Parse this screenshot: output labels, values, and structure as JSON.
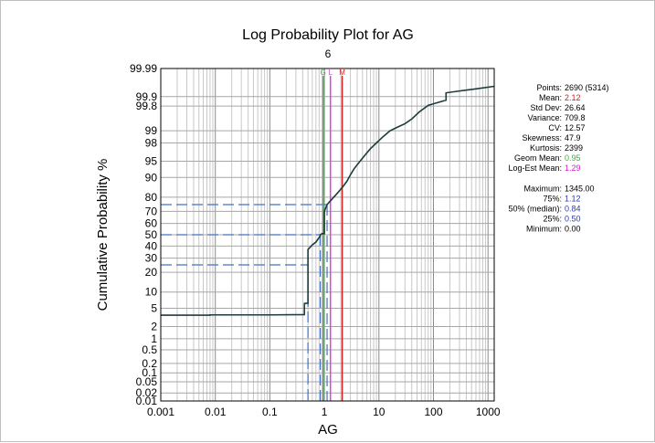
{
  "chart_data": {
    "type": "line",
    "title": "Log Probability Plot for AG",
    "subtitle": "6",
    "xlabel": "AG",
    "ylabel": "Cumulative Probability %",
    "x_scale": "log",
    "y_scale": "probability",
    "xlim": [
      0.001,
      1300
    ],
    "ylim": [
      0.01,
      99.99
    ],
    "x_ticks": [
      {
        "value": 0.001,
        "label": "0.001"
      },
      {
        "value": 0.01,
        "label": "0.01"
      },
      {
        "value": 0.1,
        "label": "0.1"
      },
      {
        "value": 1,
        "label": "1"
      },
      {
        "value": 10,
        "label": "10"
      },
      {
        "value": 100,
        "label": "100"
      },
      {
        "value": 1000,
        "label": "1000"
      }
    ],
    "y_ticks": [
      {
        "value": 0.01,
        "label": "0.01"
      },
      {
        "value": 0.02,
        "label": "0.02"
      },
      {
        "value": 0.05,
        "label": "0.05"
      },
      {
        "value": 0.1,
        "label": "0.1"
      },
      {
        "value": 0.2,
        "label": "0.2"
      },
      {
        "value": 0.5,
        "label": "0.5"
      },
      {
        "value": 1,
        "label": "1"
      },
      {
        "value": 2,
        "label": "2"
      },
      {
        "value": 5,
        "label": "5"
      },
      {
        "value": 10,
        "label": "10"
      },
      {
        "value": 20,
        "label": "20"
      },
      {
        "value": 30,
        "label": "30"
      },
      {
        "value": 40,
        "label": "40"
      },
      {
        "value": 50,
        "label": "50"
      },
      {
        "value": 60,
        "label": "60"
      },
      {
        "value": 70,
        "label": "70"
      },
      {
        "value": 80,
        "label": "80"
      },
      {
        "value": 90,
        "label": "90"
      },
      {
        "value": 95,
        "label": "95"
      },
      {
        "value": 98,
        "label": "98"
      },
      {
        "value": 99,
        "label": "99"
      },
      {
        "value": 99.8,
        "label": "99.8"
      },
      {
        "value": 99.9,
        "label": "99.9"
      },
      {
        "value": 99.99,
        "label": "99.99"
      }
    ],
    "grid": true,
    "series": [
      {
        "color": "#1f3b3b",
        "points": [
          [
            0.001,
            3.6
          ],
          [
            0.008,
            3.6
          ],
          [
            0.008,
            3.65
          ],
          [
            0.1,
            3.65
          ],
          [
            0.43,
            3.7
          ],
          [
            0.43,
            6.2
          ],
          [
            0.5,
            6.3
          ],
          [
            0.5,
            37
          ],
          [
            0.6,
            41
          ],
          [
            0.7,
            43.5
          ],
          [
            0.84,
            49
          ],
          [
            0.84,
            50
          ],
          [
            0.9,
            51
          ],
          [
            1.0,
            51
          ],
          [
            1.0,
            58
          ],
          [
            1.0,
            65
          ],
          [
            1.0,
            70
          ],
          [
            1.12,
            75
          ],
          [
            1.4,
            79
          ],
          [
            1.8,
            83
          ],
          [
            2.2,
            86
          ],
          [
            2.6,
            88.5
          ],
          [
            3.0,
            91
          ],
          [
            3.5,
            93
          ],
          [
            4.5,
            95
          ],
          [
            5.5,
            96.2
          ],
          [
            7,
            97.3
          ],
          [
            9,
            98
          ],
          [
            12,
            98.6
          ],
          [
            16,
            99.0
          ],
          [
            22,
            99.2
          ],
          [
            30,
            99.35
          ],
          [
            40,
            99.52
          ],
          [
            55,
            99.7
          ],
          [
            80,
            99.81
          ],
          [
            100,
            99.83
          ],
          [
            170,
            99.87
          ],
          [
            170,
            99.925
          ],
          [
            300,
            99.935
          ],
          [
            600,
            99.945
          ],
          [
            1300,
            99.955
          ]
        ]
      }
    ],
    "reference_lines": [
      {
        "label": "G",
        "x": 0.95,
        "color": "#4caf50"
      },
      {
        "label": "L",
        "x": 1.29,
        "color": "#e040e0"
      },
      {
        "label": "M",
        "x": 2.12,
        "color": "#d32020"
      }
    ],
    "percentile_guides": [
      {
        "percent": 25,
        "x": 0.5,
        "color": "#4472c4"
      },
      {
        "percent": 50,
        "x": 0.84,
        "color": "#4472c4"
      },
      {
        "percent": 75,
        "x": 1.12,
        "color": "#4472c4"
      }
    ],
    "stats": [
      {
        "label": "Points:",
        "value": "2690 (5314)",
        "color": "#000000"
      },
      {
        "label": "Mean:",
        "value": "2.12",
        "color": "#d32020"
      },
      {
        "label": "Std Dev:",
        "value": "26.64",
        "color": "#000000"
      },
      {
        "label": "Variance:",
        "value": "709.8",
        "color": "#000000"
      },
      {
        "label": "CV:",
        "value": "12.57",
        "color": "#000000"
      },
      {
        "label": "Skewness:",
        "value": "47.9",
        "color": "#000000"
      },
      {
        "label": "Kurtosis:",
        "value": "2399",
        "color": "#000000"
      },
      {
        "label": "Geom Mean:",
        "value": "0.95",
        "color": "#3fae3f"
      },
      {
        "label": "Log-Est Mean:",
        "value": "1.29",
        "color": "#d020d0"
      },
      {
        "label": "",
        "value": "",
        "color": "#000000"
      },
      {
        "label": "Maximum:",
        "value": "1345.00",
        "color": "#000000"
      },
      {
        "label": "75%:",
        "value": "1.12",
        "color": "#2a3caa"
      },
      {
        "label": "50% (median):",
        "value": "0.84",
        "color": "#2a3caa"
      },
      {
        "label": "25%:",
        "value": "0.50",
        "color": "#2a3caa"
      },
      {
        "label": "Minimum:",
        "value": "0.00",
        "color": "#000000"
      }
    ]
  }
}
